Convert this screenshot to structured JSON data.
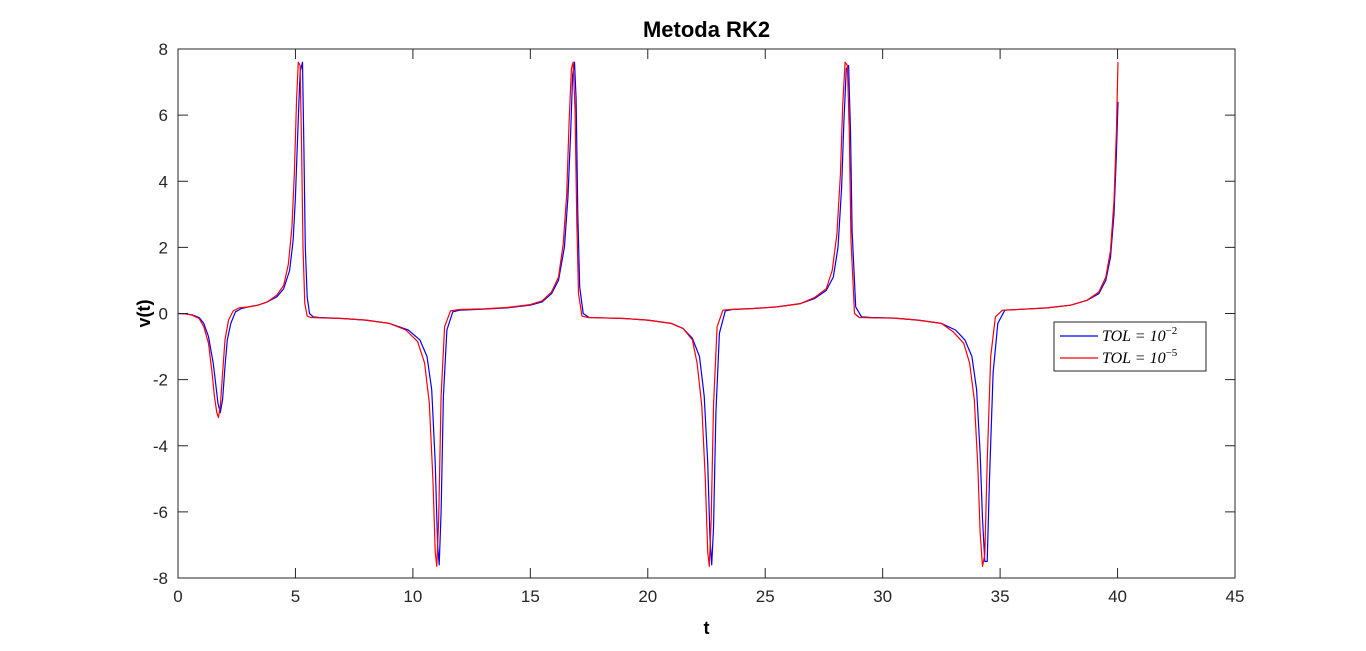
{
  "chart_data": {
    "type": "line",
    "title": "Metoda RK2",
    "xlabel": "t",
    "ylabel": "v(t)",
    "xlim": [
      0,
      45
    ],
    "ylim": [
      -8,
      8
    ],
    "xticks": [
      0,
      5,
      10,
      15,
      20,
      25,
      30,
      35,
      40,
      45
    ],
    "yticks": [
      -8,
      -6,
      -4,
      -2,
      0,
      2,
      4,
      6,
      8
    ],
    "grid": false,
    "legend_position": "right",
    "series": [
      {
        "name": "TOL = 10^-2",
        "legend_base": "TOL = 10",
        "legend_exp": "−2",
        "color": "#0000ff",
        "x": [
          0,
          0.3,
          0.6,
          0.9,
          1.1,
          1.3,
          1.5,
          1.6,
          1.7,
          1.8,
          1.9,
          2.0,
          2.1,
          2.25,
          2.45,
          2.7,
          3.0,
          3.4,
          3.8,
          4.2,
          4.5,
          4.75,
          4.9,
          5.0,
          5.1,
          5.2,
          5.3,
          5.36,
          5.42,
          5.5,
          5.6,
          5.75,
          6.0,
          7.0,
          8.0,
          9.0,
          9.8,
          10.3,
          10.6,
          10.8,
          10.95,
          11.05,
          11.12,
          11.2,
          11.3,
          11.45,
          11.7,
          12.0,
          13.0,
          14.0,
          15.0,
          15.5,
          15.9,
          16.2,
          16.45,
          16.6,
          16.72,
          16.8,
          16.88,
          16.95,
          17.02,
          17.1,
          17.25,
          17.5,
          18.0,
          19.0,
          20.0,
          21.0,
          21.5,
          21.9,
          22.2,
          22.4,
          22.55,
          22.65,
          22.72,
          22.8,
          22.9,
          23.05,
          23.3,
          23.6,
          24.5,
          25.5,
          26.5,
          27.1,
          27.6,
          27.9,
          28.1,
          28.25,
          28.35,
          28.45,
          28.55,
          28.63,
          28.7,
          28.85,
          29.1,
          29.5,
          30.5,
          31.5,
          32.5,
          33.1,
          33.5,
          33.8,
          34.0,
          34.15,
          34.25,
          34.35,
          34.45,
          34.55,
          34.7,
          34.9,
          35.2,
          36.0,
          37.0,
          38.0,
          38.7,
          39.2,
          39.5,
          39.7,
          39.85,
          39.95,
          40.02
        ],
        "y": [
          0,
          -0.01,
          -0.04,
          -0.12,
          -0.3,
          -0.7,
          -1.5,
          -2.1,
          -2.7,
          -3.0,
          -2.6,
          -1.6,
          -0.8,
          -0.3,
          0.05,
          0.15,
          0.2,
          0.25,
          0.35,
          0.5,
          0.75,
          1.3,
          2.2,
          3.5,
          5.5,
          7.3,
          7.6,
          5.0,
          2.0,
          0.5,
          0.0,
          -0.1,
          -0.12,
          -0.15,
          -0.2,
          -0.3,
          -0.5,
          -0.8,
          -1.3,
          -2.3,
          -4.5,
          -7.0,
          -7.6,
          -6.0,
          -2.5,
          -0.5,
          0.05,
          0.1,
          0.13,
          0.17,
          0.25,
          0.35,
          0.6,
          1.0,
          2.0,
          3.5,
          5.5,
          7.2,
          7.6,
          6.5,
          3.0,
          0.8,
          0.0,
          -0.12,
          -0.13,
          -0.15,
          -0.2,
          -0.3,
          -0.45,
          -0.75,
          -1.3,
          -2.5,
          -4.5,
          -6.8,
          -7.6,
          -6.5,
          -3.0,
          -0.6,
          0.08,
          0.12,
          0.15,
          0.2,
          0.3,
          0.45,
          0.7,
          1.1,
          2.0,
          3.8,
          5.8,
          7.4,
          7.5,
          5.5,
          2.5,
          0.2,
          -0.1,
          -0.12,
          -0.14,
          -0.2,
          -0.3,
          -0.5,
          -0.8,
          -1.3,
          -2.3,
          -4.2,
          -6.2,
          -7.5,
          -7.5,
          -5.0,
          -1.8,
          -0.3,
          0.1,
          0.13,
          0.17,
          0.25,
          0.4,
          0.6,
          1.0,
          1.7,
          3.0,
          4.8,
          6.4
        ]
      },
      {
        "name": "TOL = 10^-5",
        "legend_base": "TOL = 10",
        "legend_exp": "−5",
        "color": "#ff0000",
        "x": [
          0,
          0.3,
          0.6,
          0.9,
          1.1,
          1.3,
          1.45,
          1.55,
          1.65,
          1.72,
          1.8,
          1.9,
          2.0,
          2.15,
          2.35,
          2.6,
          3.0,
          3.4,
          3.8,
          4.2,
          4.5,
          4.7,
          4.85,
          4.95,
          5.05,
          5.12,
          5.2,
          5.26,
          5.32,
          5.4,
          5.5,
          5.65,
          6.0,
          7.0,
          8.0,
          9.0,
          9.7,
          10.2,
          10.5,
          10.7,
          10.85,
          10.95,
          11.02,
          11.1,
          11.2,
          11.35,
          11.6,
          12.0,
          13.0,
          14.0,
          15.0,
          15.5,
          15.9,
          16.2,
          16.4,
          16.55,
          16.65,
          16.75,
          16.82,
          16.9,
          16.98,
          17.05,
          17.2,
          17.45,
          18.0,
          19.0,
          20.0,
          21.0,
          21.5,
          21.9,
          22.1,
          22.3,
          22.45,
          22.55,
          22.62,
          22.7,
          22.8,
          22.95,
          23.2,
          23.5,
          24.5,
          25.5,
          26.5,
          27.1,
          27.6,
          27.85,
          28.05,
          28.2,
          28.3,
          28.4,
          28.5,
          28.58,
          28.65,
          28.8,
          29.0,
          29.5,
          30.5,
          31.5,
          32.5,
          33.0,
          33.45,
          33.7,
          33.9,
          34.05,
          34.15,
          34.25,
          34.35,
          34.45,
          34.6,
          34.8,
          35.1,
          36.0,
          37.0,
          38.0,
          38.7,
          39.2,
          39.5,
          39.7,
          39.85,
          39.95,
          40.02
        ],
        "y": [
          0,
          -0.01,
          -0.05,
          -0.15,
          -0.4,
          -0.9,
          -1.8,
          -2.5,
          -3.0,
          -3.15,
          -2.8,
          -1.8,
          -0.8,
          -0.2,
          0.08,
          0.17,
          0.2,
          0.25,
          0.35,
          0.55,
          0.85,
          1.5,
          2.6,
          4.2,
          6.5,
          7.6,
          7.5,
          5.0,
          2.0,
          0.3,
          -0.08,
          -0.12,
          -0.13,
          -0.15,
          -0.2,
          -0.3,
          -0.5,
          -0.85,
          -1.5,
          -2.7,
          -5.0,
          -7.2,
          -7.65,
          -6.2,
          -2.5,
          -0.4,
          0.08,
          0.12,
          0.14,
          0.18,
          0.27,
          0.38,
          0.65,
          1.1,
          2.1,
          3.6,
          5.8,
          7.4,
          7.6,
          6.2,
          2.8,
          0.6,
          -0.08,
          -0.12,
          -0.13,
          -0.15,
          -0.2,
          -0.3,
          -0.45,
          -0.8,
          -1.5,
          -2.8,
          -5.0,
          -7.2,
          -7.65,
          -6.2,
          -2.8,
          -0.4,
          0.1,
          0.12,
          0.15,
          0.2,
          0.3,
          0.48,
          0.75,
          1.3,
          2.4,
          4.2,
          6.3,
          7.6,
          7.5,
          5.5,
          2.2,
          0.0,
          -0.12,
          -0.13,
          -0.14,
          -0.2,
          -0.3,
          -0.55,
          -0.9,
          -1.5,
          -2.6,
          -4.6,
          -6.6,
          -7.65,
          -7.3,
          -4.5,
          -1.3,
          -0.1,
          0.1,
          0.13,
          0.17,
          0.25,
          0.4,
          0.65,
          1.1,
          1.9,
          3.4,
          5.5,
          7.6
        ]
      }
    ]
  }
}
